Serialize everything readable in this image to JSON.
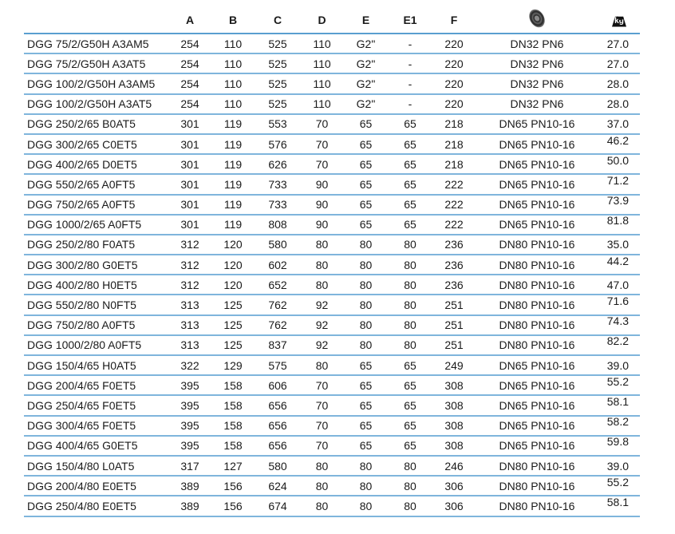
{
  "columns": [
    "",
    "A",
    "B",
    "C",
    "D",
    "E",
    "E1",
    "F"
  ],
  "icons": {
    "connection": "flange-icon",
    "weight": "weight-kg-icon"
  },
  "weight_icon_label": "kg",
  "accent_color": "#5a9fd0",
  "rows": [
    [
      "DGG 75/2/G50H A3AM5",
      "254",
      "110",
      "525",
      "110",
      "G2\"",
      "-",
      "220",
      "DN32 PN6",
      "27.0"
    ],
    [
      "DGG 75/2/G50H A3AT5",
      "254",
      "110",
      "525",
      "110",
      "G2\"",
      "-",
      "220",
      "DN32 PN6",
      "27.0"
    ],
    [
      "DGG 100/2/G50H A3AM5",
      "254",
      "110",
      "525",
      "110",
      "G2\"",
      "-",
      "220",
      "DN32 PN6",
      "28.0"
    ],
    [
      "DGG 100/2/G50H A3AT5",
      "254",
      "110",
      "525",
      "110",
      "G2\"",
      "-",
      "220",
      "DN32 PN6",
      "28.0"
    ],
    [
      "DGG 250/2/65 B0AT5",
      "301",
      "119",
      "553",
      "70",
      "65",
      "65",
      "218",
      "DN65 PN10-16",
      "37.0"
    ],
    [
      "DGG 300/2/65 C0ET5",
      "301",
      "119",
      "576",
      "70",
      "65",
      "65",
      "218",
      "DN65 PN10-16",
      "46.2"
    ],
    [
      "DGG 400/2/65 D0ET5",
      "301",
      "119",
      "626",
      "70",
      "65",
      "65",
      "218",
      "DN65 PN10-16",
      "50.0"
    ],
    [
      "DGG 550/2/65 A0FT5",
      "301",
      "119",
      "733",
      "90",
      "65",
      "65",
      "222",
      "DN65 PN10-16",
      "71.2"
    ],
    [
      "DGG 750/2/65 A0FT5",
      "301",
      "119",
      "733",
      "90",
      "65",
      "65",
      "222",
      "DN65 PN10-16",
      "73.9"
    ],
    [
      "DGG 1000/2/65 A0FT5",
      "301",
      "119",
      "808",
      "90",
      "65",
      "65",
      "222",
      "DN65 PN10-16",
      "81.8"
    ],
    [
      "DGG 250/2/80 F0AT5",
      "312",
      "120",
      "580",
      "80",
      "80",
      "80",
      "236",
      "DN80 PN10-16",
      "35.0"
    ],
    [
      "DGG 300/2/80 G0ET5",
      "312",
      "120",
      "602",
      "80",
      "80",
      "80",
      "236",
      "DN80 PN10-16",
      "44.2"
    ],
    [
      "DGG 400/2/80 H0ET5",
      "312",
      "120",
      "652",
      "80",
      "80",
      "80",
      "236",
      "DN80 PN10-16",
      "47.0"
    ],
    [
      "DGG 550/2/80 N0FT5",
      "313",
      "125",
      "762",
      "92",
      "80",
      "80",
      "251",
      "DN80 PN10-16",
      "71.6"
    ],
    [
      "DGG 750/2/80 A0FT5",
      "313",
      "125",
      "762",
      "92",
      "80",
      "80",
      "251",
      "DN80 PN10-16",
      "74.3"
    ],
    [
      "DGG 1000/2/80 A0FT5",
      "313",
      "125",
      "837",
      "92",
      "80",
      "80",
      "251",
      "DN80 PN10-16",
      "82.2"
    ],
    [
      "DGG 150/4/65 H0AT5",
      "322",
      "129",
      "575",
      "80",
      "65",
      "65",
      "249",
      "DN65 PN10-16",
      "39.0"
    ],
    [
      "DGG 200/4/65 F0ET5",
      "395",
      "158",
      "606",
      "70",
      "65",
      "65",
      "308",
      "DN65 PN10-16",
      "55.2"
    ],
    [
      "DGG 250/4/65 F0ET5",
      "395",
      "158",
      "656",
      "70",
      "65",
      "65",
      "308",
      "DN65 PN10-16",
      "58.1"
    ],
    [
      "DGG 300/4/65 F0ET5",
      "395",
      "158",
      "656",
      "70",
      "65",
      "65",
      "308",
      "DN65 PN10-16",
      "58.2"
    ],
    [
      "DGG 400/4/65 G0ET5",
      "395",
      "158",
      "656",
      "70",
      "65",
      "65",
      "308",
      "DN65 PN10-16",
      "59.8"
    ],
    [
      "DGG 150/4/80 L0AT5",
      "317",
      "127",
      "580",
      "80",
      "80",
      "80",
      "246",
      "DN80 PN10-16",
      "39.0"
    ],
    [
      "DGG 200/4/80 E0ET5",
      "389",
      "156",
      "624",
      "80",
      "80",
      "80",
      "306",
      "DN80 PN10-16",
      "55.2"
    ],
    [
      "DGG 250/4/80 E0ET5",
      "389",
      "156",
      "674",
      "80",
      "80",
      "80",
      "306",
      "DN80 PN10-16",
      "58.1"
    ]
  ]
}
